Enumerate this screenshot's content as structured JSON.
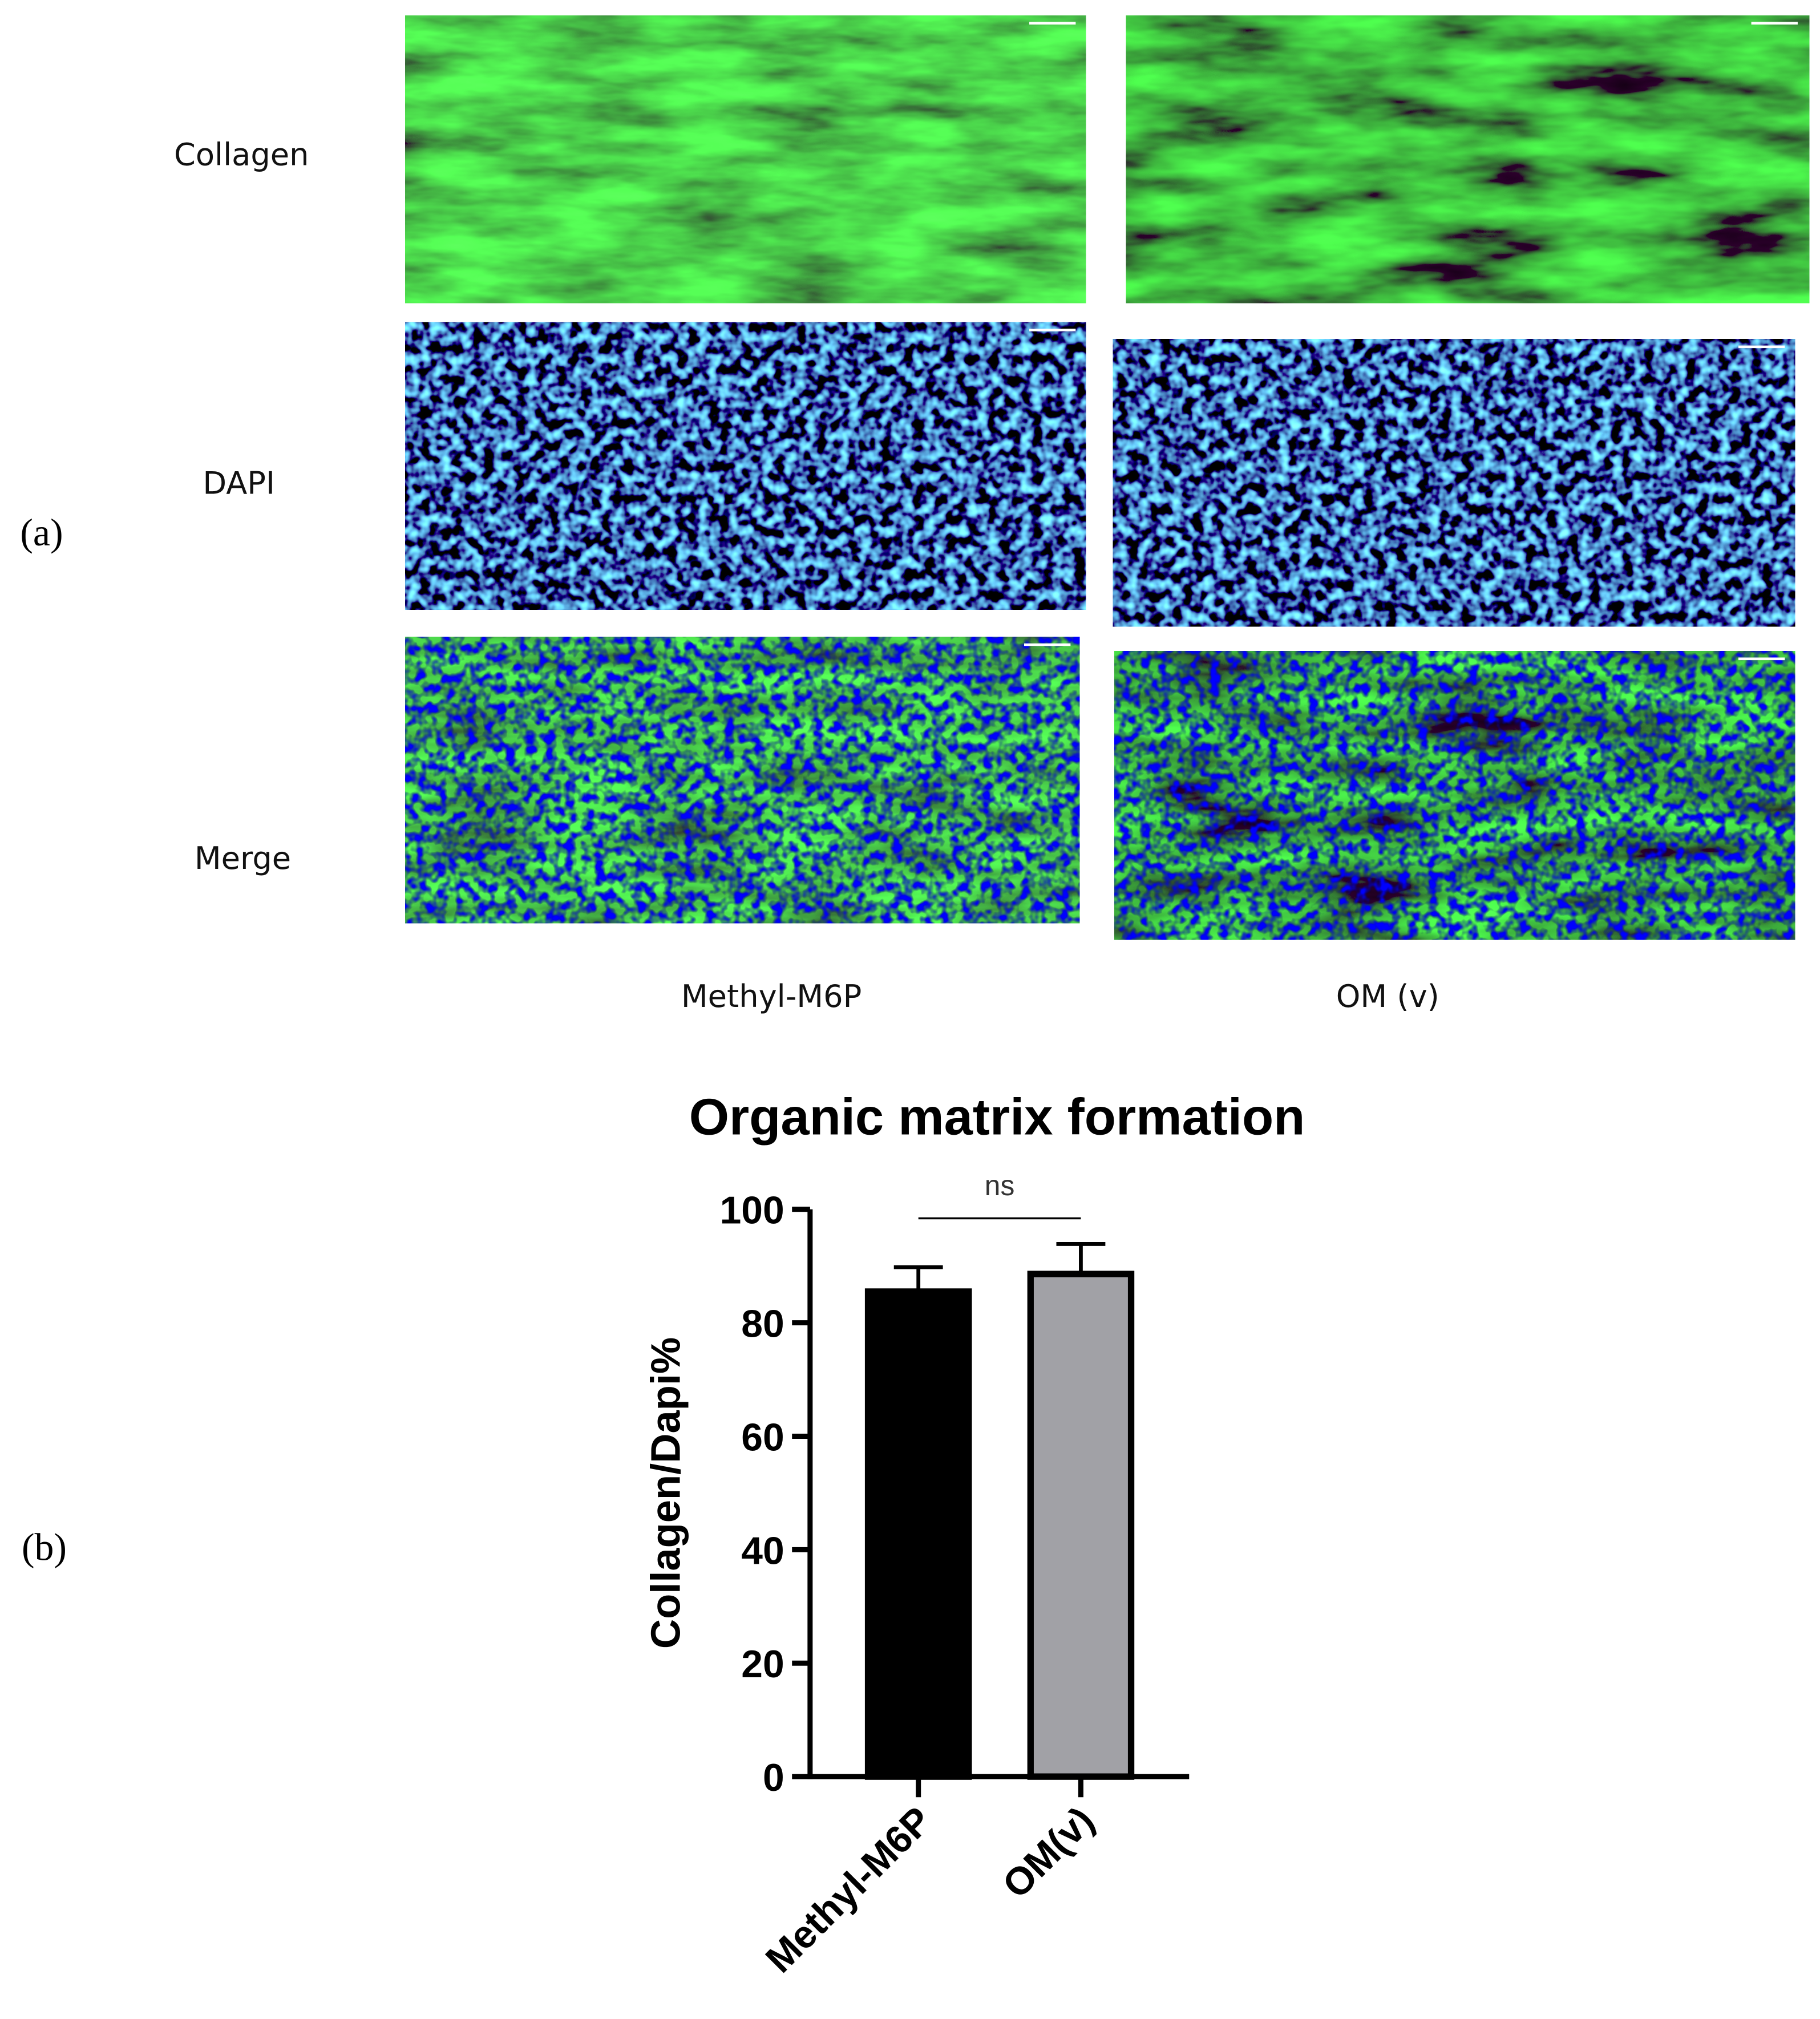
{
  "panel_a": {
    "label": "(a)",
    "rows": [
      "Collagen",
      "DAPI",
      "Merge"
    ],
    "columns": [
      "Methyl-M6P",
      "OM (v)"
    ]
  },
  "panel_b": {
    "label": "(b)"
  },
  "chart_data": {
    "type": "bar",
    "title": "Organic matrix formation",
    "y_label": "Collagen/Dapi%",
    "categories": [
      "Methyl-M6P",
      "OM(v)"
    ],
    "values": [
      85.5,
      88.6
    ],
    "errors": [
      4.3,
      5.3
    ],
    "colors": [
      "#000000",
      "#a1a1a6"
    ],
    "annotation": "ns",
    "ylim": [
      0,
      100
    ],
    "yticks": [
      0,
      20,
      40,
      60,
      80,
      100
    ]
  }
}
